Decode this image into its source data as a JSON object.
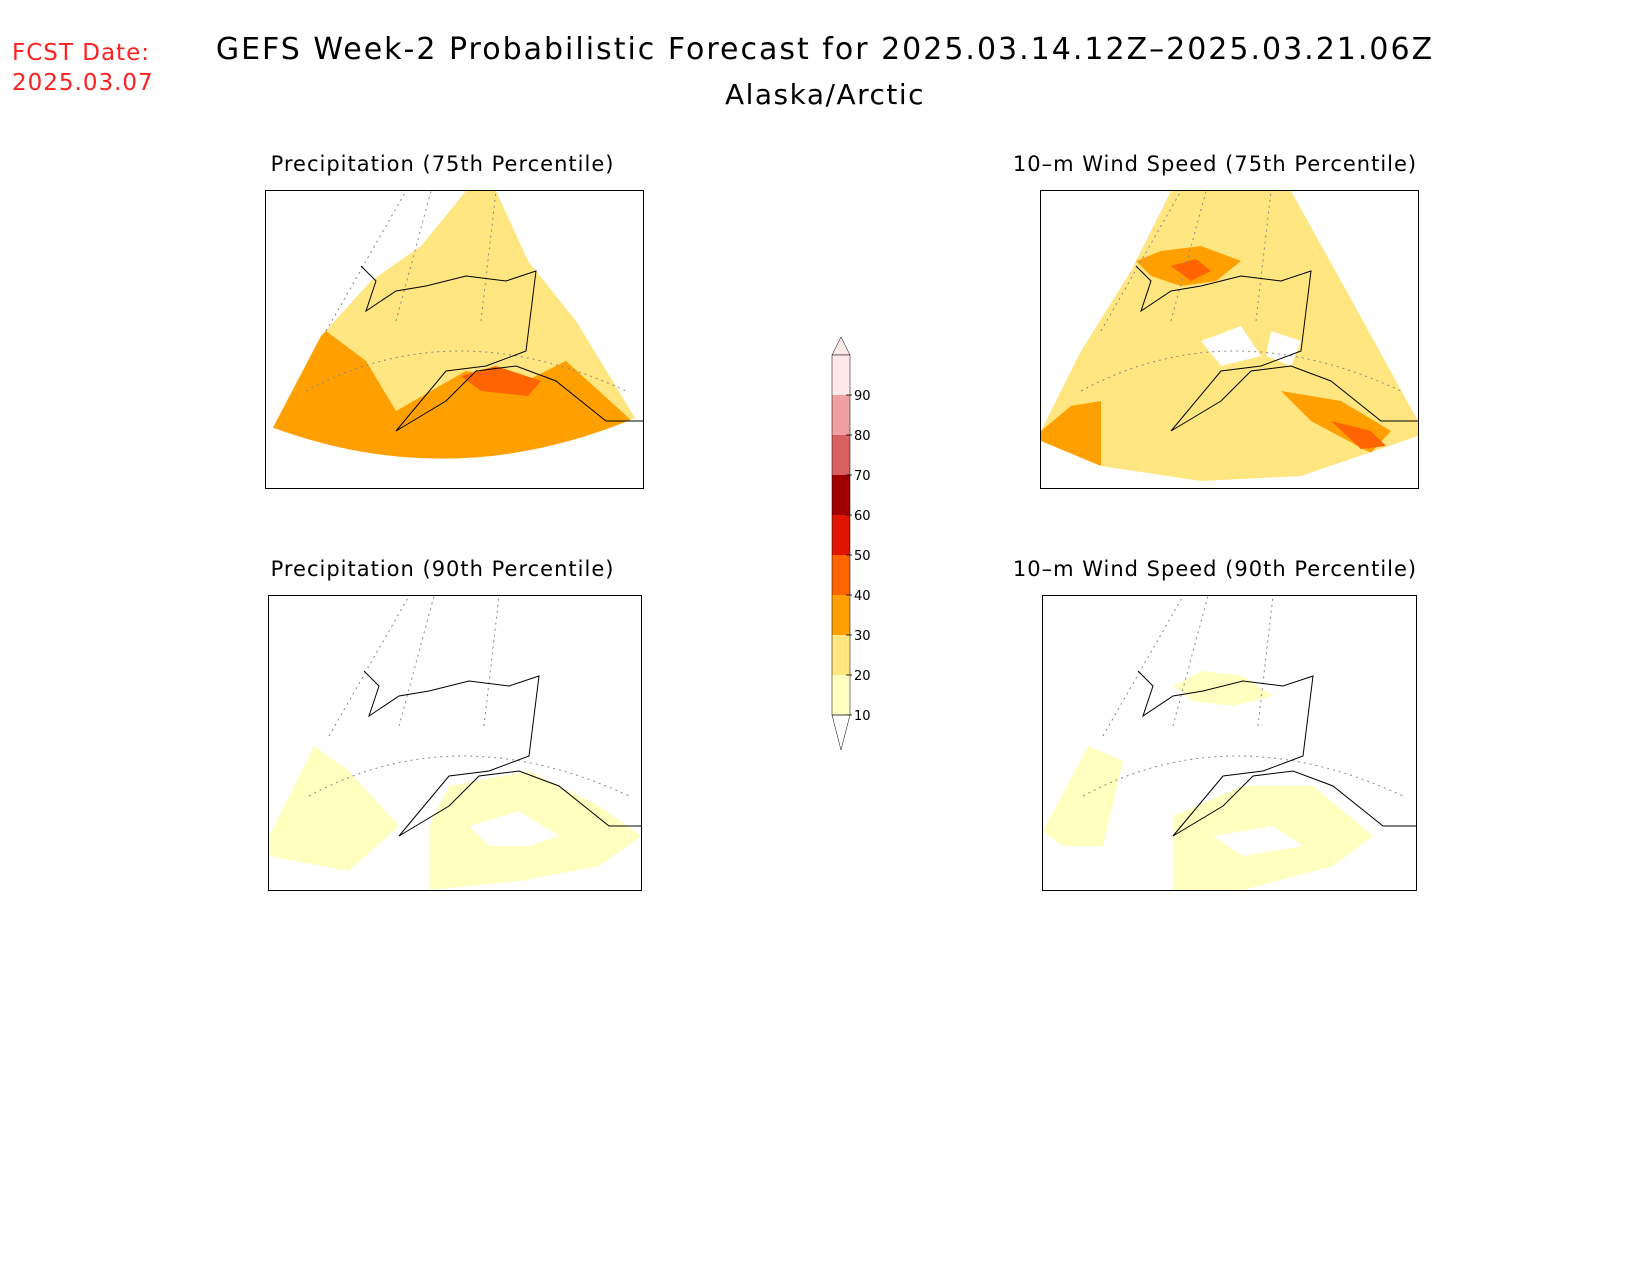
{
  "header": {
    "fcst_label": "FCST Date:",
    "fcst_date": "2025.03.07",
    "title": "GEFS Week-2 Probabilistic Forecast for 2025.03.14.12Z–2025.03.21.06Z",
    "region": "Alaska/Arctic"
  },
  "panels": [
    {
      "title": "Precipitation (75th Percentile)"
    },
    {
      "title": "10–m Wind Speed (75th Percentile)"
    },
    {
      "title": "Precipitation (90th Percentile)"
    },
    {
      "title": "10–m Wind Speed (90th Percentile)"
    }
  ],
  "colorbar": {
    "levels": [
      "10",
      "20",
      "30",
      "40",
      "50",
      "60",
      "70",
      "80",
      "90"
    ],
    "colors": [
      "#ffffc0",
      "#ffe680",
      "#ffa000",
      "#ff6400",
      "#e01400",
      "#a00000",
      "#d86060",
      "#f0a0a0",
      "#ffe8e8"
    ]
  }
}
